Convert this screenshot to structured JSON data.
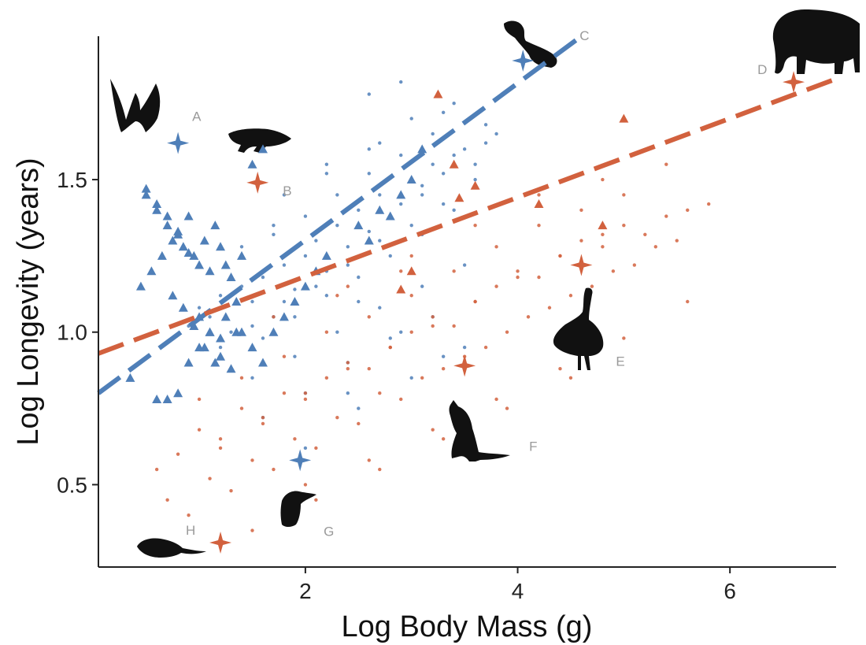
{
  "chart_data": {
    "type": "scatter",
    "title": "",
    "xlabel": "Log Body Mass (g)",
    "ylabel": "Log Longevity (years)",
    "xlim": [
      0.05,
      7.0
    ],
    "ylim": [
      0.23,
      1.97
    ],
    "x_ticks": [
      2,
      4,
      6
    ],
    "y_ticks": [
      0.5,
      1.0,
      1.5
    ],
    "grid": false,
    "legend": "none",
    "colors": {
      "blue": "#4f7fb8",
      "red": "#d2613e"
    },
    "series": [
      {
        "color": "blue",
        "marker": "dot",
        "x": [
          0.9,
          1.0,
          1.1,
          1.2,
          1.3,
          1.4,
          1.5,
          1.6,
          1.7,
          1.8,
          1.9,
          2.0,
          2.1,
          2.2,
          2.3,
          2.4,
          2.5,
          2.6,
          2.7,
          2.8,
          2.9,
          3.0,
          3.1,
          3.2,
          3.3,
          3.4,
          3.5,
          3.6,
          3.7,
          3.8,
          1.2,
          1.5,
          1.8,
          2.1,
          2.4,
          2.7,
          3.0,
          3.3,
          3.6,
          1.3,
          1.6,
          1.9,
          2.2,
          2.5,
          2.8,
          3.1,
          3.4,
          1.4,
          1.7,
          2.0,
          2.3,
          2.6,
          2.9,
          3.2,
          1.1,
          1.5,
          1.9,
          2.3,
          2.7,
          3.1,
          3.5,
          1.6,
          2.0,
          2.4,
          2.8,
          3.2,
          1.8,
          2.2,
          2.6,
          3.0,
          3.4,
          2.0,
          2.5,
          3.0,
          3.5,
          2.6,
          2.9,
          3.3,
          3.7,
          2.2,
          2.7,
          3.1,
          1.7,
          2.1,
          2.5,
          2.9,
          3.3,
          2.4
        ],
        "y": [
          1.02,
          1.08,
          1.05,
          1.12,
          1.0,
          1.15,
          1.1,
          1.18,
          1.05,
          1.22,
          1.14,
          1.25,
          1.3,
          1.2,
          1.35,
          1.28,
          1.4,
          1.33,
          1.45,
          1.38,
          1.42,
          1.5,
          1.48,
          1.55,
          1.52,
          1.58,
          1.6,
          1.55,
          1.62,
          1.65,
          0.95,
          1.02,
          1.1,
          1.15,
          1.22,
          1.3,
          1.35,
          1.42,
          1.5,
          0.88,
          0.98,
          1.05,
          1.12,
          1.18,
          1.25,
          1.32,
          1.4,
          1.28,
          1.32,
          1.38,
          1.45,
          1.52,
          1.58,
          1.65,
          1.2,
          0.85,
          0.92,
          1.0,
          1.08,
          1.15,
          1.22,
          0.72,
          0.8,
          0.9,
          0.98,
          1.05,
          1.45,
          1.52,
          1.6,
          1.7,
          1.75,
          0.62,
          0.75,
          0.85,
          0.95,
          1.78,
          1.82,
          1.72,
          1.68,
          1.55,
          1.62,
          1.45,
          1.35,
          1.2,
          1.1,
          1.0,
          0.92,
          0.8
        ]
      },
      {
        "color": "red",
        "marker": "dot",
        "x": [
          0.6,
          0.8,
          1.0,
          1.2,
          1.4,
          1.6,
          1.8,
          2.0,
          2.2,
          2.4,
          2.6,
          2.8,
          3.0,
          3.2,
          3.4,
          3.6,
          3.8,
          4.0,
          4.2,
          4.4,
          4.6,
          4.8,
          5.0,
          5.2,
          5.4,
          5.6,
          5.8,
          0.7,
          1.1,
          1.5,
          1.9,
          2.3,
          2.7,
          3.1,
          3.5,
          3.9,
          4.3,
          4.7,
          5.1,
          5.5,
          0.9,
          1.3,
          1.7,
          2.1,
          2.5,
          2.9,
          3.3,
          3.7,
          4.1,
          4.5,
          4.9,
          5.3,
          1.0,
          1.4,
          1.8,
          2.2,
          2.6,
          3.0,
          3.4,
          3.8,
          4.2,
          4.6,
          5.0,
          1.2,
          1.6,
          2.0,
          2.4,
          2.8,
          3.2,
          3.6,
          4.0,
          4.4,
          4.8,
          2.0,
          2.6,
          3.2,
          3.8,
          4.4,
          5.0,
          5.6,
          1.5,
          2.1,
          2.7,
          3.3,
          3.9,
          4.5,
          2.4,
          3.0,
          3.6,
          4.2,
          4.8,
          5.4,
          1.7,
          2.3,
          2.9
        ],
        "y": [
          0.55,
          0.6,
          0.68,
          0.62,
          0.75,
          0.7,
          0.8,
          0.78,
          0.85,
          0.9,
          0.88,
          0.95,
          1.0,
          1.05,
          1.02,
          1.1,
          1.15,
          1.2,
          1.18,
          1.25,
          1.3,
          1.28,
          1.35,
          1.32,
          1.38,
          1.4,
          1.42,
          0.45,
          0.52,
          0.58,
          0.65,
          0.72,
          0.8,
          0.85,
          0.92,
          1.0,
          1.08,
          1.15,
          1.22,
          1.3,
          0.4,
          0.48,
          0.55,
          0.62,
          0.7,
          0.78,
          0.88,
          0.95,
          1.05,
          1.12,
          1.2,
          1.28,
          0.78,
          0.85,
          0.92,
          1.0,
          1.05,
          1.12,
          1.2,
          1.28,
          1.35,
          1.4,
          1.45,
          0.65,
          0.72,
          0.8,
          0.88,
          0.95,
          1.02,
          1.1,
          1.18,
          1.25,
          1.32,
          0.5,
          0.58,
          0.68,
          0.78,
          0.88,
          0.98,
          1.1,
          0.35,
          0.45,
          0.55,
          0.65,
          0.75,
          0.85,
          1.15,
          1.25,
          1.35,
          1.45,
          1.5,
          1.55,
          1.05,
          1.12,
          1.2
        ]
      },
      {
        "color": "blue",
        "marker": "triangle",
        "x": [
          0.35,
          0.5,
          0.6,
          0.7,
          0.75,
          0.8,
          0.85,
          0.9,
          0.95,
          1.0,
          1.05,
          1.1,
          1.15,
          1.2,
          1.25,
          1.3,
          1.35,
          1.4,
          0.5,
          0.6,
          0.7,
          0.8,
          0.9,
          1.0,
          1.1,
          1.2,
          0.45,
          0.55,
          0.65,
          0.75,
          0.85,
          0.95,
          1.05,
          1.15,
          1.25,
          1.35,
          0.6,
          0.7,
          0.8,
          0.9,
          1.0,
          1.1,
          1.2,
          1.3,
          1.4,
          1.5,
          1.6,
          1.7,
          1.8,
          1.9,
          2.0,
          2.1,
          2.2,
          1.5,
          1.6,
          2.5,
          2.6,
          2.7,
          2.8,
          2.9,
          3.0,
          3.1
        ],
        "y": [
          0.85,
          1.47,
          1.4,
          1.35,
          1.3,
          1.32,
          1.28,
          1.38,
          1.25,
          1.22,
          1.3,
          1.2,
          1.35,
          1.28,
          1.22,
          1.18,
          1.1,
          1.25,
          1.45,
          1.42,
          1.38,
          1.33,
          1.26,
          1.05,
          1.0,
          0.98,
          1.15,
          1.2,
          1.25,
          1.12,
          1.08,
          1.02,
          0.95,
          0.9,
          1.05,
          1.0,
          0.78,
          0.78,
          0.8,
          0.9,
          0.95,
          1.0,
          0.92,
          0.88,
          1.0,
          0.95,
          0.9,
          1.0,
          1.05,
          1.1,
          1.15,
          1.2,
          1.25,
          1.55,
          1.6,
          1.35,
          1.3,
          1.4,
          1.38,
          1.45,
          1.5,
          1.6
        ]
      },
      {
        "color": "red",
        "marker": "triangle",
        "x": [
          3.25,
          3.4,
          3.6,
          3.45,
          3.0,
          2.9,
          4.2,
          5.0,
          4.8
        ],
        "y": [
          1.78,
          1.55,
          1.48,
          1.44,
          1.2,
          1.14,
          1.42,
          1.7,
          1.35
        ]
      }
    ],
    "fit_lines": [
      {
        "color": "blue",
        "x": [
          0.05,
          4.6
        ],
        "y": [
          0.8,
          1.97
        ]
      },
      {
        "color": "red",
        "x": [
          0.05,
          7.0
        ],
        "y": [
          0.93,
          1.83
        ]
      }
    ],
    "highlighted_species": [
      {
        "label": "A",
        "x": 0.8,
        "y": 1.62,
        "color": "blue"
      },
      {
        "label": "B",
        "x": 1.55,
        "y": 1.49,
        "color": "red"
      },
      {
        "label": "C",
        "x": 4.05,
        "y": 1.89,
        "color": "blue"
      },
      {
        "label": "D",
        "x": 6.6,
        "y": 1.82,
        "color": "red"
      },
      {
        "label": "E",
        "x": 4.6,
        "y": 1.22,
        "color": "red"
      },
      {
        "label": "F",
        "x": 3.5,
        "y": 0.89,
        "color": "red"
      },
      {
        "label": "G",
        "x": 1.95,
        "y": 0.58,
        "color": "blue"
      },
      {
        "label": "H",
        "x": 1.2,
        "y": 0.31,
        "color": "red"
      }
    ],
    "silhouettes": [
      "bat-icon",
      "lizard-icon",
      "vulture-icon",
      "elephant-icon",
      "emu-icon",
      "kangaroo-icon",
      "penguin-icon",
      "rodent-icon"
    ]
  }
}
